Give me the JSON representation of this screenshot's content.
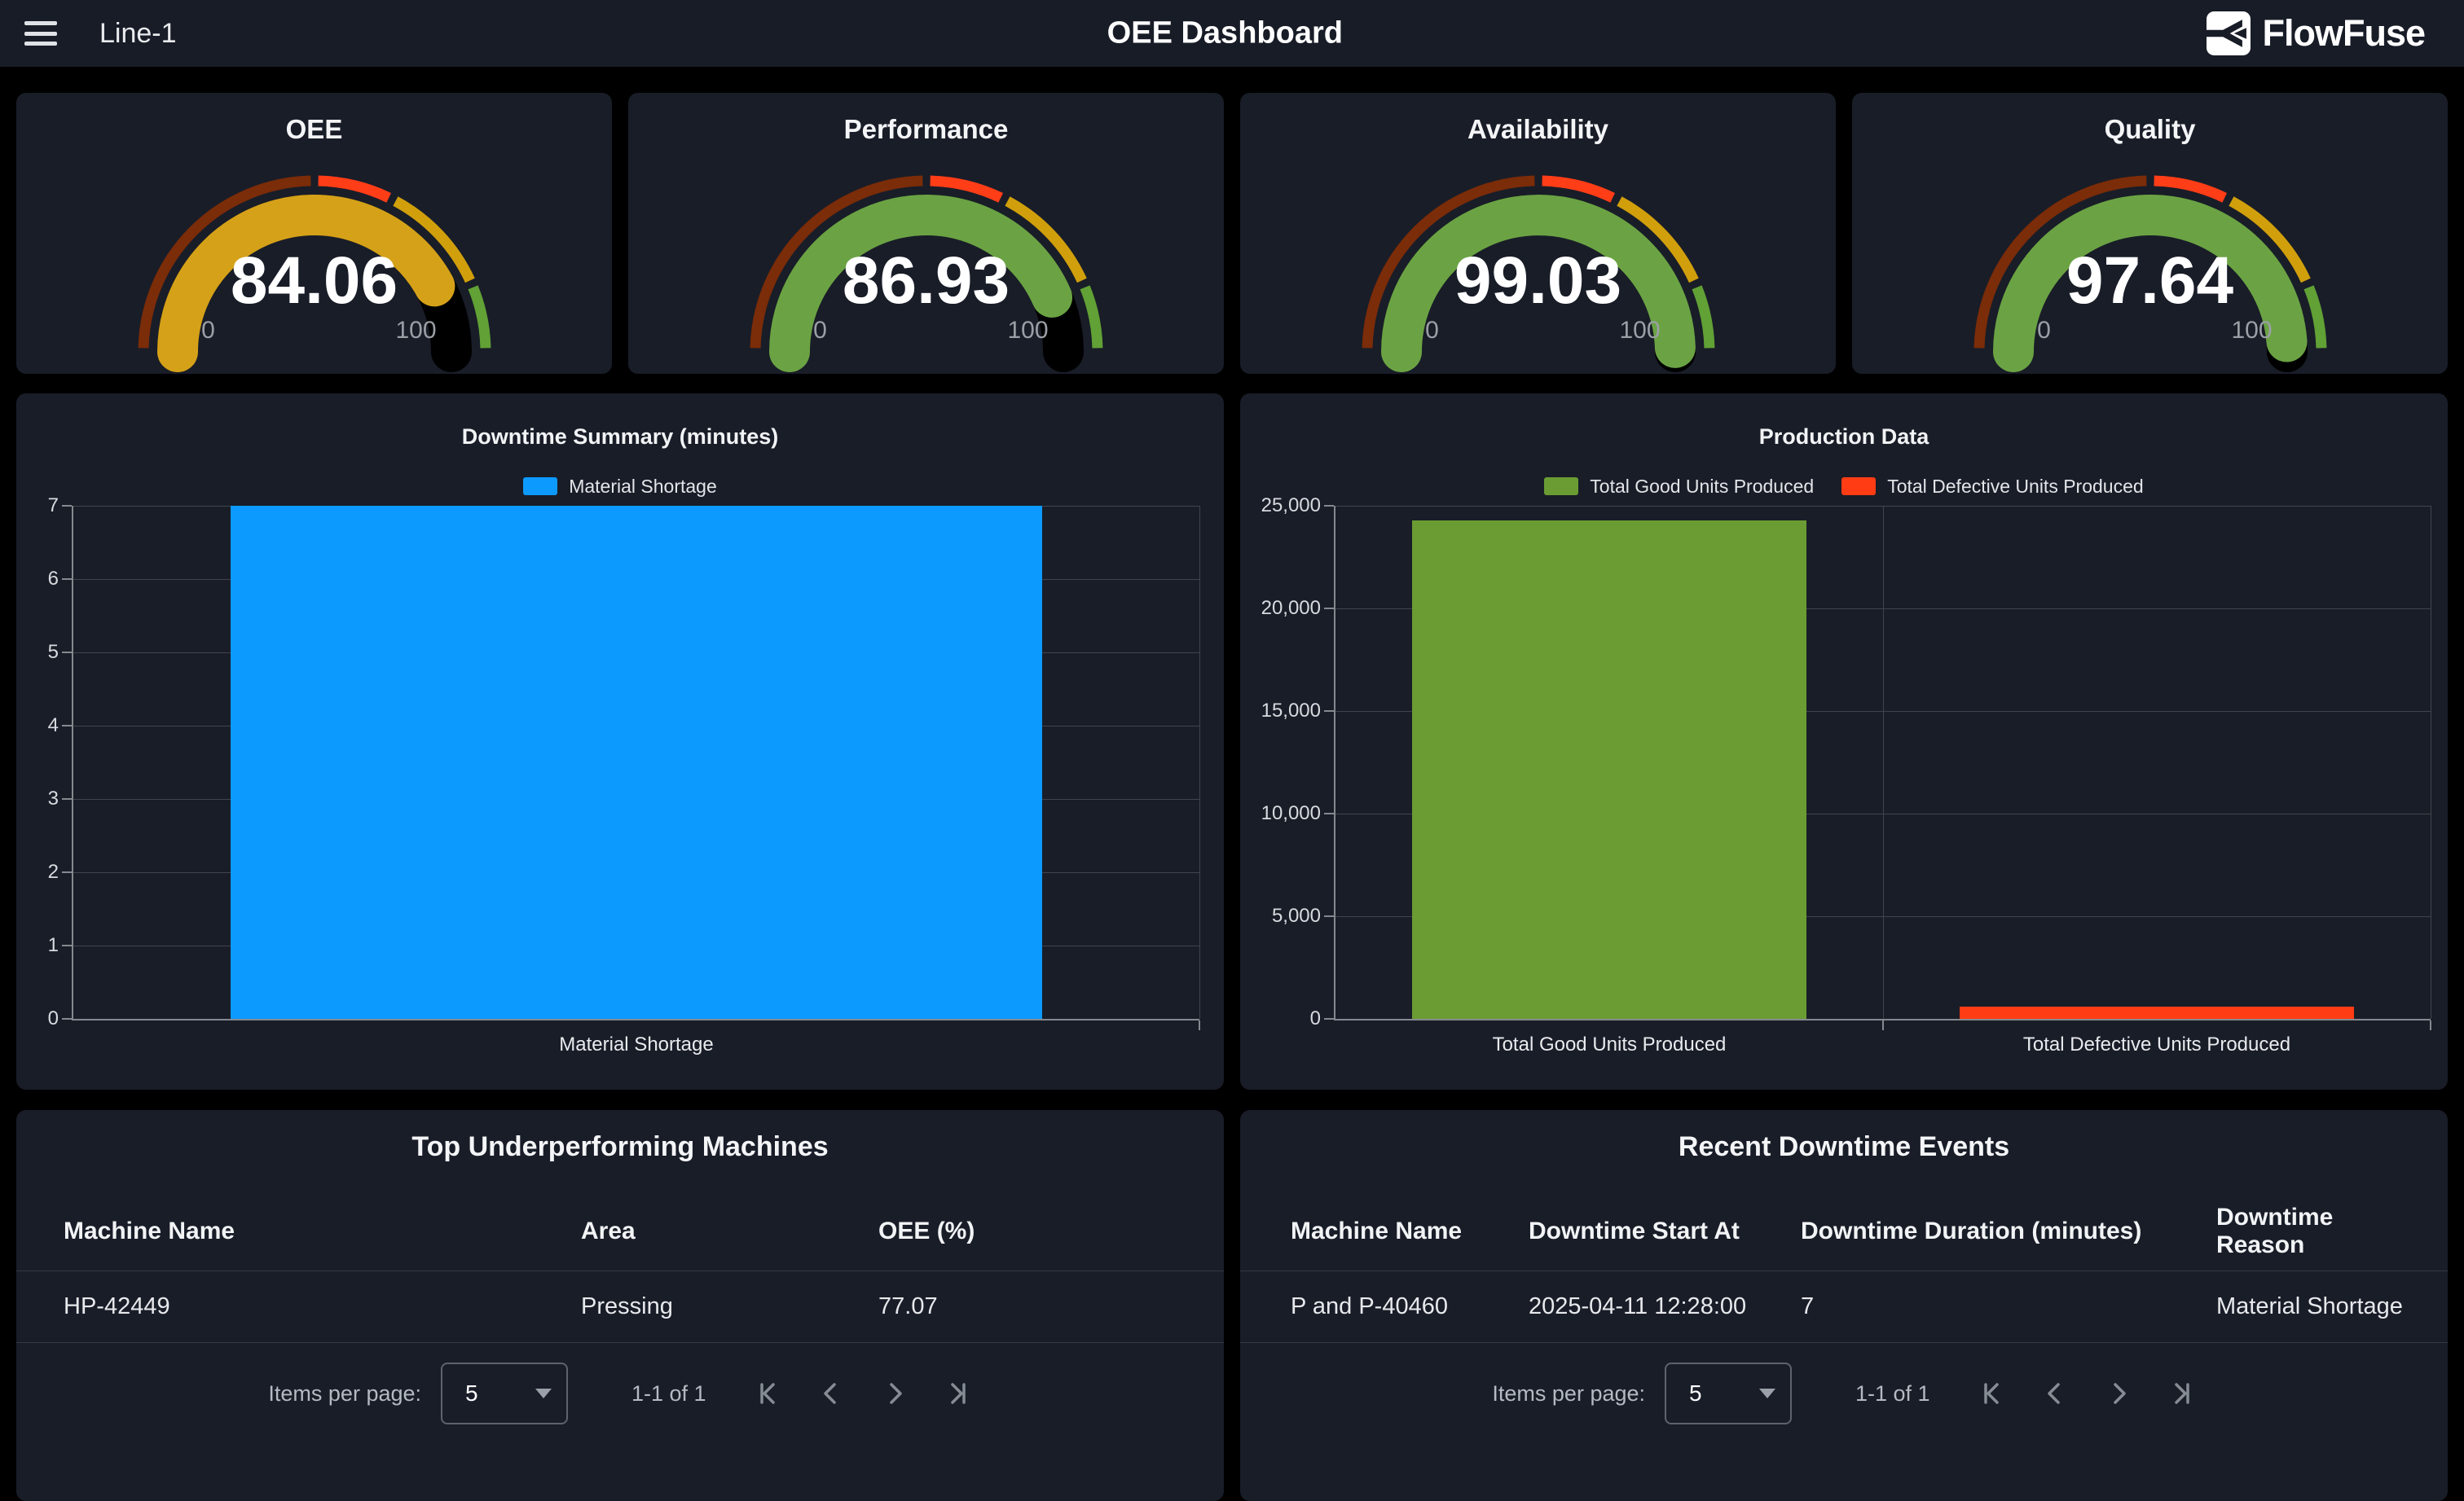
{
  "header": {
    "nav_label": "Line-1",
    "title": "OEE Dashboard",
    "brand": "FlowFuse"
  },
  "gauges": {
    "min_label": "0",
    "max_label": "100",
    "segments": [
      {
        "from": 0,
        "to": 50,
        "color": "#7b2c08"
      },
      {
        "from": 50,
        "to": 65,
        "color": "#ff3d17"
      },
      {
        "from": 65,
        "to": 87,
        "color": "#d09f0b"
      },
      {
        "from": 87,
        "to": 100,
        "color": "#61a135"
      }
    ],
    "items": [
      {
        "title": "OEE",
        "value": "84.06",
        "percent": 84.06,
        "color": "#d5a118"
      },
      {
        "title": "Performance",
        "value": "86.93",
        "percent": 86.93,
        "color": "#6ba344"
      },
      {
        "title": "Availability",
        "value": "99.03",
        "percent": 99.03,
        "color": "#6ba344"
      },
      {
        "title": "Quality",
        "value": "97.64",
        "percent": 97.64,
        "color": "#6ba344"
      }
    ]
  },
  "chart_data": [
    {
      "type": "bar",
      "title": "Downtime Summary (minutes)",
      "categories": [
        "Material Shortage"
      ],
      "values": [
        7
      ],
      "bar_colors": [
        "#0d9aff"
      ],
      "legend": [
        {
          "label": "Material Shortage",
          "color": "#0d9aff"
        }
      ],
      "xlabel": "",
      "ylabel": "",
      "ylim": [
        0,
        7
      ],
      "yticks": [
        0,
        1,
        2,
        3,
        4,
        5,
        6,
        7
      ],
      "grid": true,
      "legend_position": "top"
    },
    {
      "type": "bar",
      "title": "Production Data",
      "categories": [
        "Total Good Units Produced",
        "Total Defective Units Produced"
      ],
      "values": [
        24300,
        600
      ],
      "bar_colors": [
        "#6a9c33",
        "#ff3c14"
      ],
      "legend": [
        {
          "label": "Total Good Units Produced",
          "color": "#6a9c33"
        },
        {
          "label": "Total Defective Units Produced",
          "color": "#ff3c14"
        }
      ],
      "xlabel": "",
      "ylabel": "",
      "ylim": [
        0,
        25000
      ],
      "yticks": [
        0,
        5000,
        10000,
        15000,
        20000,
        25000
      ],
      "grid": true,
      "legend_position": "top"
    }
  ],
  "tables": [
    {
      "title": "Top Underperforming Machines",
      "columns": [
        "Machine Name",
        "Area",
        "OEE (%)"
      ],
      "rows": [
        [
          "HP-42449",
          "Pressing",
          "77.07"
        ]
      ]
    },
    {
      "title": "Recent Downtime Events",
      "columns": [
        "Machine Name",
        "Downtime Start At",
        "Downtime Duration (minutes)",
        "Downtime Reason"
      ],
      "rows": [
        [
          "P and P-40460",
          "2025-04-11 12:28:00",
          "7",
          "Material Shortage"
        ]
      ]
    }
  ],
  "pagination": {
    "items_per_page_label": "Items per page:",
    "page_size": "5",
    "range_label": "1-1 of 1"
  }
}
